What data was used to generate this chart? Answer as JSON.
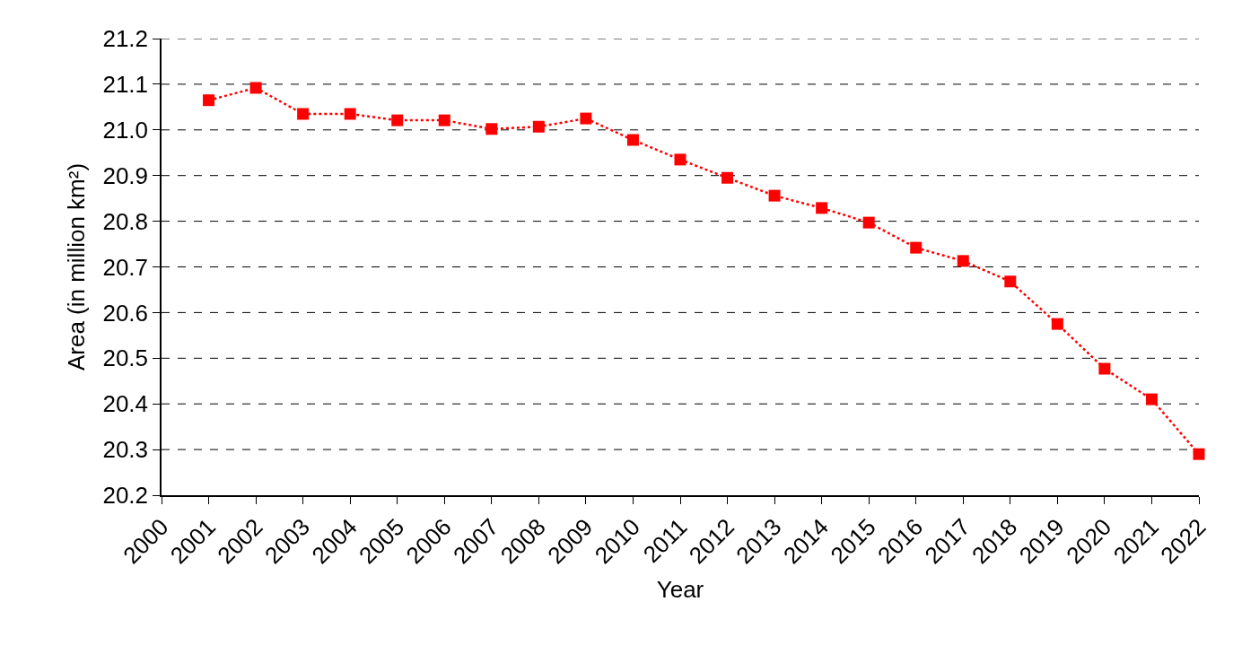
{
  "chart_data": {
    "type": "line",
    "xlabel": "Year",
    "ylabel": "Area (in million km²)",
    "x": [
      2001,
      2002,
      2003,
      2004,
      2005,
      2006,
      2007,
      2008,
      2009,
      2010,
      2011,
      2012,
      2013,
      2014,
      2015,
      2016,
      2017,
      2018,
      2019,
      2020,
      2021,
      2022
    ],
    "series": [
      {
        "color": "#ff0000",
        "values": [
          21.065,
          21.092,
          21.035,
          21.035,
          21.021,
          21.021,
          21.002,
          21.007,
          21.025,
          20.978,
          20.935,
          20.895,
          20.856,
          20.829,
          20.797,
          20.742,
          20.713,
          20.668,
          20.575,
          20.477,
          20.41,
          20.29
        ]
      }
    ],
    "xlim": [
      2000,
      2022
    ],
    "xticks": [
      2000,
      2001,
      2002,
      2003,
      2004,
      2005,
      2006,
      2007,
      2008,
      2009,
      2010,
      2011,
      2012,
      2013,
      2014,
      2015,
      2016,
      2017,
      2018,
      2019,
      2020,
      2021,
      2022
    ],
    "ylim": [
      20.2,
      21.2
    ],
    "yticks": [
      {
        "value": 20.2,
        "label": "20.2"
      },
      {
        "value": 20.3,
        "label": "20.3"
      },
      {
        "value": 20.4,
        "label": "20.4"
      },
      {
        "value": 20.5,
        "label": "20.5"
      },
      {
        "value": 20.6,
        "label": "20.6"
      },
      {
        "value": 20.7,
        "label": "20.7"
      },
      {
        "value": 20.8,
        "label": "20.8"
      },
      {
        "value": 20.9,
        "label": "20.9"
      },
      {
        "value": 21.0,
        "label": "21.0"
      },
      {
        "value": 21.1,
        "label": "21.1"
      },
      {
        "value": 21.2,
        "label": "21.2"
      }
    ],
    "grid": "y",
    "marker": "square",
    "line_style": "dotted"
  }
}
